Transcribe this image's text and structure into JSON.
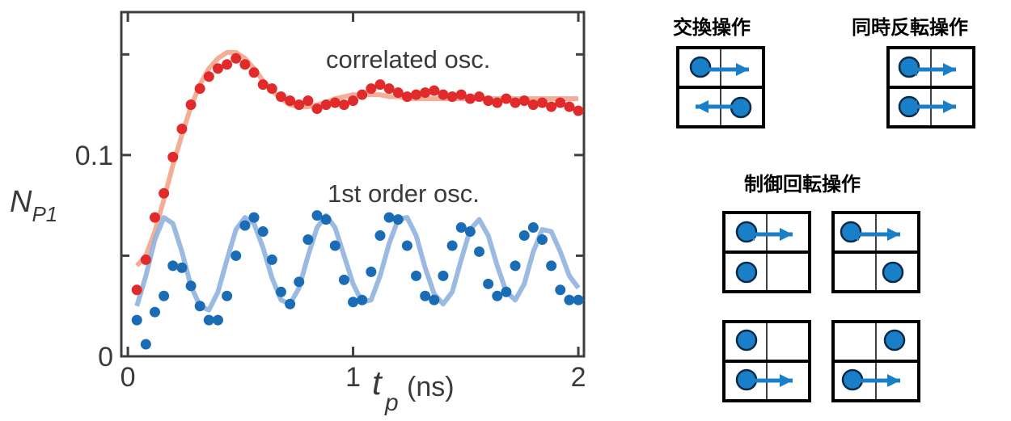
{
  "chart_data": {
    "type": "scatter",
    "xlabel": {
      "symbol": "t",
      "subscript": "p",
      "unit": "(ns)"
    },
    "ylabel": {
      "symbol": "N",
      "subscript": "P1"
    },
    "xlim": [
      -0.029,
      2.025
    ],
    "ylim": [
      0,
      0.171
    ],
    "xticks": [
      0,
      1,
      2
    ],
    "yticks": [
      0,
      0.1
    ],
    "yminorticks": [
      0.05,
      0.15
    ],
    "x": [
      0.04,
      0.08,
      0.12,
      0.16,
      0.2,
      0.24,
      0.28,
      0.32,
      0.36,
      0.4,
      0.44,
      0.48,
      0.52,
      0.56,
      0.6,
      0.64,
      0.68,
      0.72,
      0.76,
      0.8,
      0.84,
      0.88,
      0.92,
      0.96,
      1.0,
      1.04,
      1.08,
      1.12,
      1.16,
      1.2,
      1.24,
      1.28,
      1.32,
      1.36,
      1.4,
      1.44,
      1.48,
      1.52,
      1.56,
      1.6,
      1.64,
      1.68,
      1.72,
      1.76,
      1.8,
      1.84,
      1.88,
      1.92,
      1.96,
      2.0
    ],
    "series": [
      {
        "name": "correlated osc.",
        "color": "#e12b2b",
        "values": [
          0.033,
          0.048,
          0.069,
          0.081,
          0.099,
          0.113,
          0.125,
          0.133,
          0.139,
          0.143,
          0.145,
          0.148,
          0.145,
          0.141,
          0.135,
          0.133,
          0.129,
          0.127,
          0.125,
          0.127,
          0.123,
          0.125,
          0.126,
          0.125,
          0.127,
          0.13,
          0.133,
          0.135,
          0.133,
          0.131,
          0.129,
          0.13,
          0.131,
          0.132,
          0.13,
          0.129,
          0.13,
          0.128,
          0.129,
          0.127,
          0.126,
          0.128,
          0.126,
          0.127,
          0.125,
          0.126,
          0.124,
          0.126,
          0.124,
          0.122
        ]
      },
      {
        "name": "1st order osc.",
        "color": "#1a6db5",
        "values": [
          0.018,
          0.006,
          0.022,
          0.03,
          0.045,
          0.044,
          0.035,
          0.025,
          0.018,
          0.018,
          0.03,
          0.05,
          0.065,
          0.069,
          0.062,
          0.048,
          0.032,
          0.026,
          0.037,
          0.058,
          0.07,
          0.068,
          0.055,
          0.038,
          0.027,
          0.028,
          0.042,
          0.06,
          0.069,
          0.068,
          0.055,
          0.04,
          0.03,
          0.028,
          0.04,
          0.055,
          0.064,
          0.062,
          0.052,
          0.036,
          0.03,
          0.032,
          0.045,
          0.06,
          0.064,
          0.058,
          0.045,
          0.033,
          0.028,
          0.028
        ]
      }
    ],
    "fits": [
      {
        "color": "#f3a48c",
        "values": [
          0.045,
          0.05,
          0.062,
          0.078,
          0.095,
          0.11,
          0.124,
          0.135,
          0.143,
          0.148,
          0.151,
          0.151,
          0.148,
          0.143,
          0.137,
          0.132,
          0.128,
          0.125,
          0.124,
          0.124,
          0.125,
          0.126,
          0.128,
          0.129,
          0.13,
          0.13,
          0.13,
          0.13,
          0.129,
          0.129,
          0.128,
          0.128,
          0.128,
          0.128,
          0.128,
          0.128,
          0.128,
          0.128,
          0.128,
          0.128,
          0.128,
          0.128,
          0.128,
          0.128,
          0.128,
          0.128,
          0.128,
          0.128,
          0.128,
          0.128
        ]
      },
      {
        "color": "#8fb2de",
        "values": [
          0.025,
          0.04,
          0.058,
          0.069,
          0.066,
          0.052,
          0.035,
          0.025,
          0.023,
          0.032,
          0.048,
          0.063,
          0.069,
          0.066,
          0.054,
          0.039,
          0.028,
          0.026,
          0.034,
          0.05,
          0.064,
          0.07,
          0.064,
          0.05,
          0.036,
          0.027,
          0.028,
          0.04,
          0.056,
          0.068,
          0.069,
          0.06,
          0.044,
          0.031,
          0.026,
          0.032,
          0.048,
          0.063,
          0.068,
          0.06,
          0.045,
          0.032,
          0.028,
          0.036,
          0.052,
          0.063,
          0.062,
          0.052,
          0.04,
          0.034
        ]
      }
    ]
  },
  "diagrams": {
    "swap": {
      "label": "交換操作"
    },
    "parallel": {
      "label": "同時反転操作"
    },
    "controlled": {
      "label": "制御回転操作"
    }
  }
}
